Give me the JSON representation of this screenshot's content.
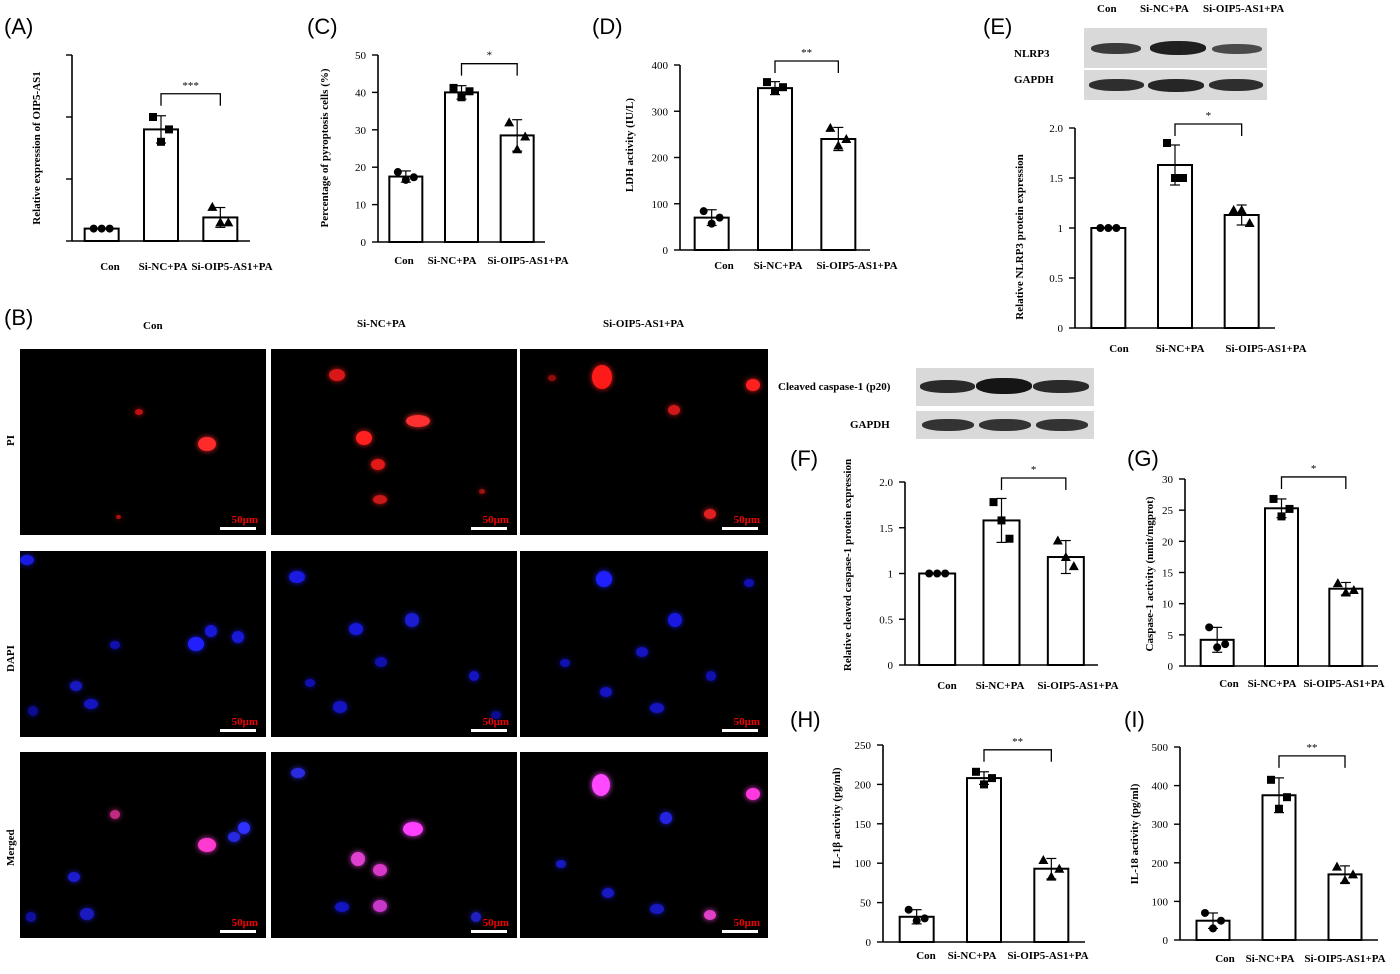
{
  "panels": {
    "A": "(A)",
    "B": "(B)",
    "C": "(C)",
    "D": "(D)",
    "E": "(E)",
    "F": "(F)",
    "G": "(G)",
    "H": "(H)",
    "I": "(I)"
  },
  "chart_data": [
    {
      "id": "A",
      "type": "bar",
      "categories": [
        "Con",
        "Si-NC+PA",
        "Si-OIP5-AS1+PA"
      ],
      "values": [
        0.2,
        1.8,
        0.38
      ],
      "errors": [
        0.0,
        0.22,
        0.16
      ],
      "points": [
        [
          0.2,
          0.2,
          0.2
        ],
        [
          2.0,
          1.6,
          1.8
        ],
        [
          0.55,
          0.3,
          0.3
        ]
      ],
      "markers": [
        "circle",
        "square",
        "triangle"
      ],
      "ylabel": "Relative expression of OIP5-AS1",
      "ylim": [
        0,
        3
      ],
      "yticks": [],
      "ytick_count": 3,
      "significance": {
        "from": 1,
        "to": 2,
        "label": "***"
      }
    },
    {
      "id": "C",
      "type": "bar",
      "categories": [
        "Con",
        "Si-NC+PA",
        "Si-OIP5-AS1+PA"
      ],
      "values": [
        17.5,
        40,
        28.5
      ],
      "errors": [
        1.5,
        1.8,
        4.2
      ],
      "points": [
        [
          18.7,
          16.6,
          17.3
        ],
        [
          41.2,
          38.7,
          40.3
        ],
        [
          32.0,
          24.8,
          28.2
        ]
      ],
      "markers": [
        "circle",
        "square",
        "triangle"
      ],
      "ylabel": "Percentage of pyroptosis cells (%)",
      "ylim": [
        0,
        50
      ],
      "yticks": [
        0,
        10,
        20,
        30,
        40,
        50
      ],
      "significance": {
        "from": 1,
        "to": 2,
        "label": "*"
      }
    },
    {
      "id": "D",
      "type": "bar",
      "categories": [
        "Con",
        "Si-NC+PA",
        "Si-OIP5-AS1+PA"
      ],
      "values": [
        70,
        350,
        240
      ],
      "errors": [
        17,
        14,
        25
      ],
      "points": [
        [
          84,
          57,
          70
        ],
        [
          363,
          344,
          352
        ],
        [
          264,
          226,
          240
        ]
      ],
      "markers": [
        "circle",
        "square",
        "triangle"
      ],
      "ylabel": "LDH activity (IU/L)",
      "ylim": [
        0,
        400
      ],
      "yticks": [
        0,
        100,
        200,
        300,
        400
      ],
      "significance": {
        "from": 1,
        "to": 2,
        "label": "**"
      }
    },
    {
      "id": "E",
      "type": "bar",
      "categories": [
        "Con",
        "Si-NC+PA",
        "Si-OIP5-AS1+PA"
      ],
      "values": [
        1.0,
        1.63,
        1.13
      ],
      "errors": [
        0.0,
        0.2,
        0.1
      ],
      "points": [
        [
          1.0,
          1.0,
          1.0
        ],
        [
          1.85,
          1.5,
          1.5
        ],
        [
          1.18,
          1.18,
          1.05
        ]
      ],
      "markers": [
        "circle",
        "square",
        "triangle"
      ],
      "ylabel": "Relative NLRP3 protein expression",
      "ylim": [
        0,
        2.0
      ],
      "yticks": [
        "0",
        "0.5",
        "1",
        "1.5",
        "2.0"
      ],
      "significance": {
        "from": 1,
        "to": 2,
        "label": "*"
      }
    },
    {
      "id": "F",
      "type": "bar",
      "categories": [
        "Con",
        "Si-NC+PA",
        "Si-OIP5-AS1+PA"
      ],
      "values": [
        1.0,
        1.58,
        1.18
      ],
      "errors": [
        0.0,
        0.24,
        0.18
      ],
      "points": [
        [
          1.0,
          1.0,
          1.0
        ],
        [
          1.78,
          1.58,
          1.38
        ],
        [
          1.36,
          1.18,
          1.08
        ]
      ],
      "markers": [
        "circle",
        "square",
        "triangle"
      ],
      "ylabel": "Relative cleaved caspase-1 protein expression",
      "ylim": [
        0,
        2.0
      ],
      "yticks": [
        "0",
        "0.5",
        "1",
        "1.5",
        "2.0"
      ],
      "significance": {
        "from": 1,
        "to": 2,
        "label": "*"
      }
    },
    {
      "id": "G",
      "type": "bar",
      "categories": [
        "Con",
        "Si-NC+PA",
        "Si-OIP5-AS1+PA"
      ],
      "values": [
        4.2,
        25.3,
        12.4
      ],
      "errors": [
        2.0,
        1.5,
        1.0
      ],
      "points": [
        [
          6.2,
          3.0,
          3.5
        ],
        [
          26.8,
          24.0,
          25.2
        ],
        [
          13.3,
          11.8,
          12.2
        ]
      ],
      "markers": [
        "circle",
        "square",
        "triangle"
      ],
      "ylabel": "Caspase-1 activity (nmit/mgprot)",
      "ylim": [
        0,
        30
      ],
      "yticks": [
        0,
        5,
        10,
        15,
        20,
        25,
        30
      ],
      "significance": {
        "from": 1,
        "to": 2,
        "label": "*"
      }
    },
    {
      "id": "H",
      "type": "bar",
      "categories": [
        "Con",
        "Si-NC+PA",
        "Si-OIP5-AS1+PA"
      ],
      "values": [
        32,
        208,
        93
      ],
      "errors": [
        9,
        8,
        13
      ],
      "points": [
        [
          41,
          27,
          30
        ],
        [
          216,
          200,
          208
        ],
        [
          104,
          83,
          93
        ]
      ],
      "markers": [
        "circle",
        "square",
        "triangle"
      ],
      "ylabel": "IL-1β activity (pg/ml)",
      "ylim": [
        0,
        250
      ],
      "yticks": [
        0,
        50,
        100,
        150,
        200,
        250
      ],
      "significance": {
        "from": 1,
        "to": 2,
        "label": "**"
      }
    },
    {
      "id": "I",
      "type": "bar",
      "categories": [
        "Con",
        "Si-NC+PA",
        "Si-OIP5-AS1+PA"
      ],
      "values": [
        50,
        375,
        170
      ],
      "errors": [
        20,
        45,
        22
      ],
      "points": [
        [
          70,
          30,
          50
        ],
        [
          415,
          340,
          370
        ],
        [
          190,
          155,
          170
        ]
      ],
      "markers": [
        "circle",
        "square",
        "triangle"
      ],
      "ylabel": "IL-18 activity (pg/ml)",
      "ylim": [
        0,
        500
      ],
      "yticks": [
        0,
        100,
        200,
        300,
        400,
        500
      ],
      "significance": {
        "from": 1,
        "to": 2,
        "label": "**"
      }
    }
  ],
  "micrographs": {
    "columns": [
      "Con",
      "Si-NC+PA",
      "Si-OIP5-AS1+PA"
    ],
    "rows": [
      "PI",
      "DAPI",
      "Merged"
    ],
    "scale_bar": "50μm"
  },
  "blots": {
    "E": {
      "columns": [
        "Con",
        "Si-NC+PA",
        "Si-OIP5-AS1+PA"
      ],
      "rows": [
        "NLRP3",
        "GAPDH"
      ]
    },
    "F": {
      "rows": [
        "Cleaved caspase-1 (p20)",
        "GAPDH"
      ]
    }
  }
}
